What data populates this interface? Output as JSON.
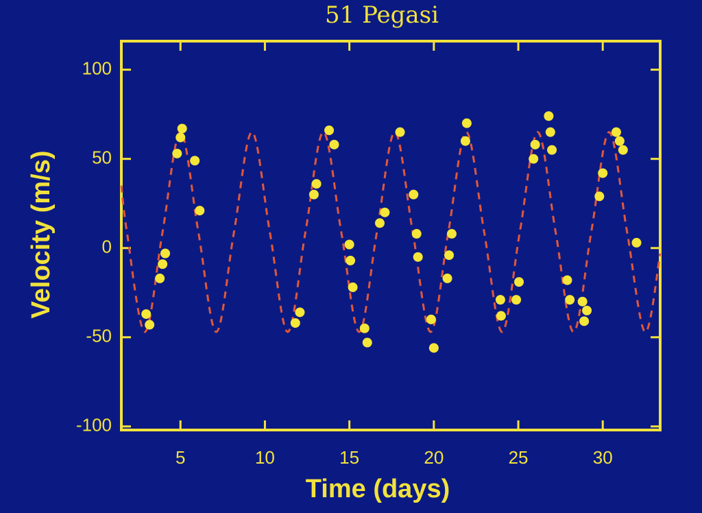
{
  "chart_data": {
    "type": "scatter",
    "title": "51 Pegasi",
    "x_label": "Time (days)",
    "y_label": "Velocity (m/s)",
    "xlim": [
      1.5,
      33.4
    ],
    "xticks": [
      5,
      10,
      15,
      20,
      25,
      30
    ],
    "ylim": [
      -102,
      116
    ],
    "yticks": [
      -100,
      -50,
      0,
      50,
      100
    ],
    "background": "#0b1a82",
    "frame_color": "#f2e23c",
    "series": [
      {
        "type": "line",
        "color": "#e0583a",
        "dashed": true,
        "x": [
          1.5,
          1.83,
          2.89,
          3.94,
          5.0,
          6.06,
          7.12,
          8.17,
          9.23,
          10.29,
          11.35,
          12.4,
          13.46,
          14.52,
          15.58,
          16.63,
          17.69,
          18.75,
          19.81,
          20.86,
          21.92,
          22.98,
          24.04,
          25.09,
          26.15,
          27.21,
          28.27,
          29.32,
          30.38,
          31.44,
          32.5,
          33.4
        ],
        "values": [
          35,
          9,
          -47,
          9,
          65,
          9,
          -47,
          9,
          65,
          9,
          -47,
          9,
          65,
          9,
          -47,
          9,
          65,
          9,
          -47,
          9,
          65,
          9,
          -47,
          9,
          65,
          9,
          -47,
          9,
          65,
          9,
          -47,
          -3
        ]
      },
      {
        "type": "scatter",
        "color": "#f5e63a",
        "x": [
          2.97,
          3.17,
          3.78,
          3.94,
          4.1,
          4.8,
          5.0,
          5.1,
          5.85,
          6.14,
          11.8,
          12.07,
          12.9,
          13.05,
          13.8,
          14.1,
          15.0,
          15.06,
          15.2,
          15.9,
          16.06,
          16.8,
          17.1,
          18.0,
          18.8,
          18.98,
          19.06,
          19.84,
          20.0,
          20.8,
          20.9,
          21.06,
          21.87,
          21.95,
          23.94,
          23.98,
          24.88,
          25.04,
          25.9,
          26.0,
          26.8,
          26.9,
          26.99,
          27.9,
          28.05,
          28.8,
          28.9,
          29.06,
          29.8,
          30.0,
          30.8,
          31.0,
          31.2,
          32.0
        ],
        "values": [
          -37,
          -43,
          -17,
          -9,
          -3,
          53,
          62,
          67,
          49,
          21,
          -42,
          -36,
          30,
          36,
          66,
          58,
          2,
          -7,
          -22,
          -45,
          -53,
          14,
          20,
          65,
          30,
          8,
          -5,
          -40,
          -56,
          -17,
          -4,
          8,
          60,
          70,
          -29,
          -38,
          -29,
          -19,
          50,
          58,
          74,
          65,
          55,
          -18,
          -29,
          -30,
          -41,
          -35,
          29,
          42,
          65,
          60,
          55,
          3
        ]
      }
    ]
  }
}
